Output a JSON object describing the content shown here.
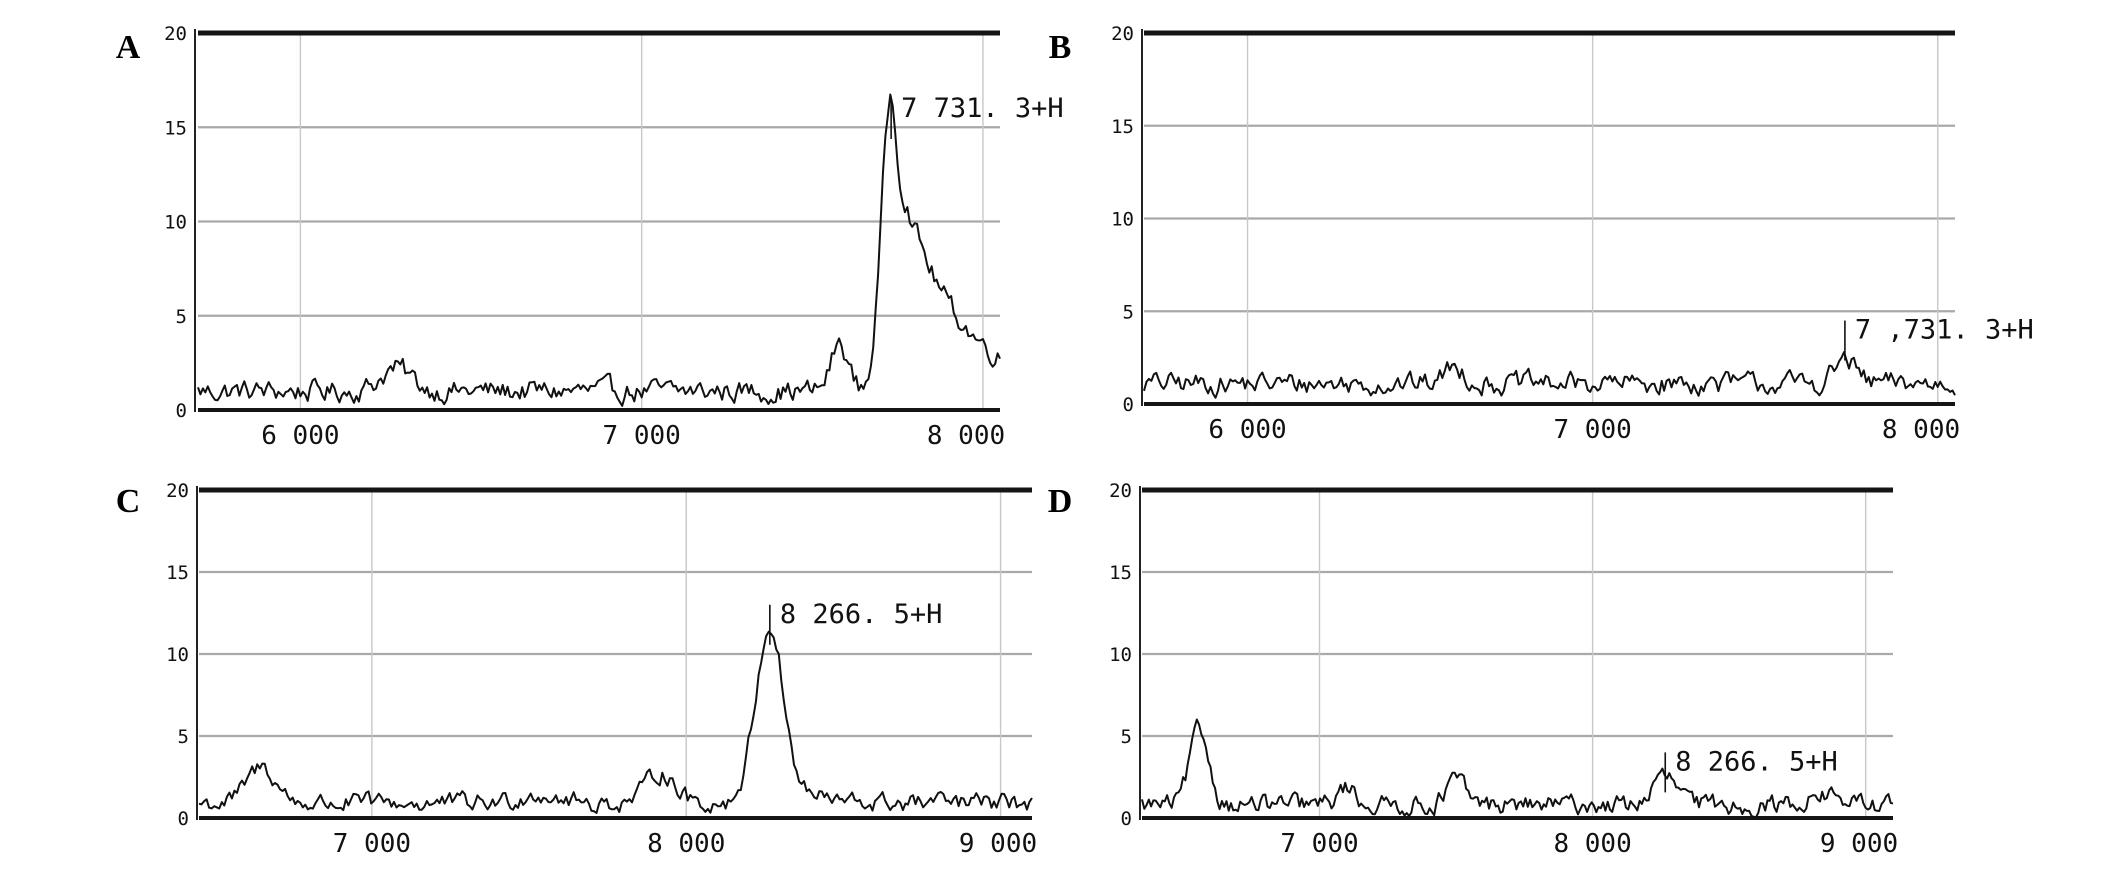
{
  "chart_data": [
    {
      "type": "line",
      "panel": "A",
      "xlim": [
        5700,
        8050
      ],
      "ylim": [
        0,
        20
      ],
      "y_ticks": [
        "0",
        "5",
        "10",
        "15",
        "20"
      ],
      "x_ticks": [
        {
          "value": 6000,
          "label": "6 000"
        },
        {
          "value": 7000,
          "label": "7 000"
        },
        {
          "value": 8000,
          "label": "8 000"
        }
      ],
      "baseline": 1.0,
      "peaks": [
        {
          "x": 6280,
          "height": 1.2,
          "width": 45
        },
        {
          "x": 7580,
          "height": 2.5,
          "width": 25
        },
        {
          "x": 7731,
          "height": 15.7,
          "width": 28,
          "tail": 160
        }
      ],
      "annotation": {
        "x": 7731,
        "y": 16.5,
        "label": "7 731. 3+H"
      }
    },
    {
      "type": "line",
      "panel": "B",
      "xlim": [
        5700,
        8050
      ],
      "ylim": [
        0,
        20
      ],
      "y_ticks": [
        "0",
        "5",
        "10",
        "15",
        "20"
      ],
      "x_ticks": [
        {
          "value": 6000,
          "label": "6 000"
        },
        {
          "value": 7000,
          "label": "7 000"
        },
        {
          "value": 8000,
          "label": "8 000"
        }
      ],
      "baseline": 1.1,
      "peaks": [
        {
          "x": 6600,
          "height": 0.9,
          "width": 30
        },
        {
          "x": 7731,
          "height": 1.3,
          "width": 30
        }
      ],
      "annotation": {
        "x": 7731,
        "y": 4.5,
        "label": "7 ,731. 3+H"
      }
    },
    {
      "type": "line",
      "panel": "C",
      "xlim": [
        6450,
        9100
      ],
      "ylim": [
        0,
        20
      ],
      "y_ticks": [
        "0",
        "5",
        "10",
        "15",
        "20"
      ],
      "x_ticks": [
        {
          "value": 7000,
          "label": "7 000"
        },
        {
          "value": 8000,
          "label": "8 000"
        },
        {
          "value": 9000,
          "label": "9 000"
        }
      ],
      "baseline": 0.9,
      "peaks": [
        {
          "x": 6650,
          "height": 2.2,
          "width": 45
        },
        {
          "x": 7530,
          "height": 0.6,
          "width": 60
        },
        {
          "x": 7920,
          "height": 1.9,
          "width": 45
        },
        {
          "x": 8266,
          "height": 10.8,
          "width": 45,
          "tail": 50
        }
      ],
      "annotation": {
        "x": 8266,
        "y": 13,
        "label": "8 266. 5+H"
      }
    },
    {
      "type": "line",
      "panel": "D",
      "xlim": [
        6350,
        9100
      ],
      "ylim": [
        0,
        20
      ],
      "y_ticks": [
        "0",
        "5",
        "10",
        "15",
        "20"
      ],
      "x_ticks": [
        {
          "value": 7000,
          "label": "7 000"
        },
        {
          "value": 8000,
          "label": "8 000"
        },
        {
          "value": 9000,
          "label": "9 000"
        }
      ],
      "baseline": 0.8,
      "peaks": [
        {
          "x": 6560,
          "height": 4.5,
          "width": 35
        },
        {
          "x": 7100,
          "height": 1.1,
          "width": 30
        },
        {
          "x": 7500,
          "height": 1.5,
          "width": 35
        },
        {
          "x": 8266,
          "height": 1.7,
          "width": 45
        },
        {
          "x": 8850,
          "height": 0.6,
          "width": 60
        }
      ],
      "annotation": {
        "x": 8266,
        "y": 4.0,
        "label": "8 266. 5+H"
      }
    }
  ]
}
